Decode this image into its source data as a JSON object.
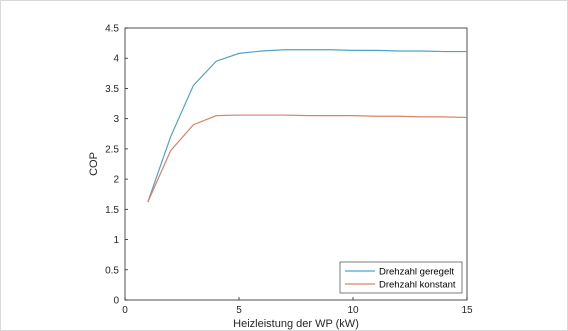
{
  "chart_data": {
    "type": "line",
    "xlabel": "Heizleistung der WP (kW)",
    "ylabel": "COP",
    "xlim": [
      0,
      15
    ],
    "ylim": [
      0,
      4.5
    ],
    "xticks": [
      "0",
      "5",
      "10",
      "15"
    ],
    "yticks": [
      "0",
      "0.5",
      "1",
      "1.5",
      "2",
      "2.5",
      "3",
      "3.5",
      "4",
      "4.5"
    ],
    "grid": false,
    "legend_position": "bottom-right",
    "series": [
      {
        "name": "Drehzahl geregelt",
        "color": "#4FA3C7",
        "x": [
          1,
          2,
          3,
          4,
          5,
          6,
          7,
          8,
          9,
          10,
          11,
          12,
          13,
          14,
          15
        ],
        "y": [
          1.62,
          2.7,
          3.55,
          3.95,
          4.08,
          4.12,
          4.14,
          4.14,
          4.14,
          4.13,
          4.13,
          4.12,
          4.12,
          4.11,
          4.11
        ]
      },
      {
        "name": "Drehzahl konstant",
        "color": "#D9826A",
        "x": [
          1,
          2,
          3,
          4,
          5,
          6,
          7,
          8,
          9,
          10,
          11,
          12,
          13,
          14,
          15
        ],
        "y": [
          1.62,
          2.47,
          2.9,
          3.05,
          3.06,
          3.06,
          3.06,
          3.05,
          3.05,
          3.05,
          3.04,
          3.04,
          3.03,
          3.03,
          3.02
        ]
      }
    ]
  }
}
